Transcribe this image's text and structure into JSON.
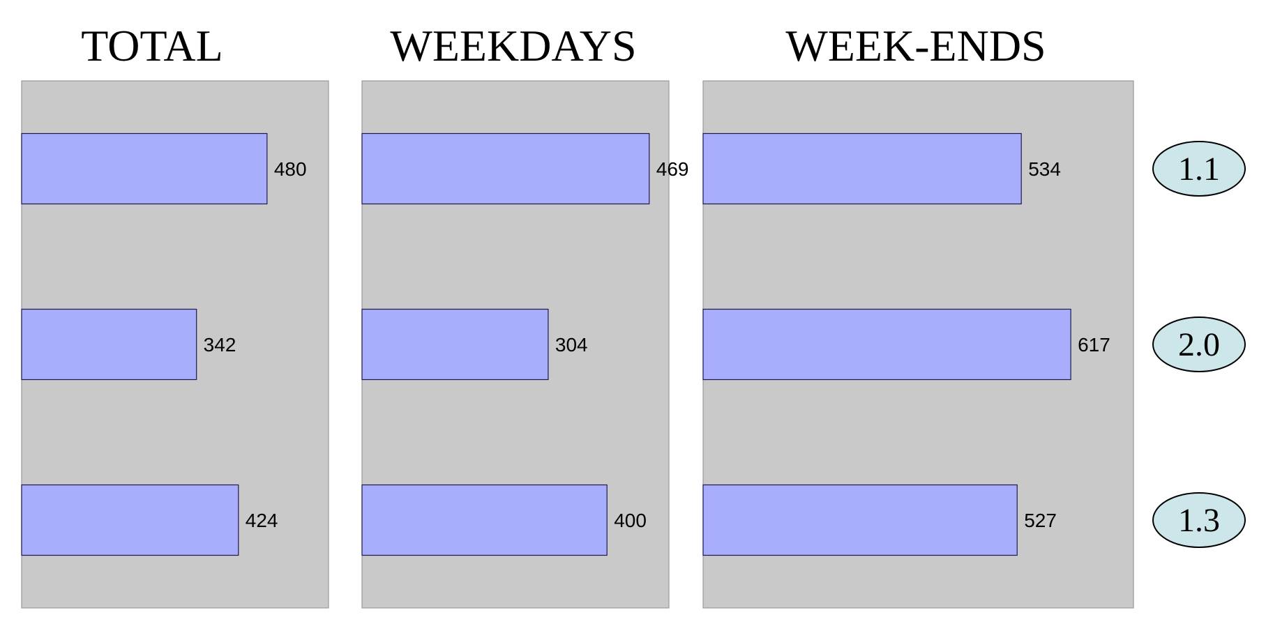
{
  "colors": {
    "panel": "#c9c9c9",
    "bar": "#a8aefc",
    "ratio_fill": "#cde6ea"
  },
  "chart_data": {
    "type": "bar",
    "orientation": "horizontal",
    "panels": [
      {
        "title": "TOTAL",
        "values": [
          480,
          342,
          424
        ]
      },
      {
        "title": "WEEKDAYS",
        "values": [
          469,
          304,
          400
        ]
      },
      {
        "title": "WEEK-ENDS",
        "values": [
          534,
          617,
          527
        ]
      }
    ],
    "ratios": [
      "1.1",
      "2.0",
      "1.3"
    ],
    "grid": false
  }
}
